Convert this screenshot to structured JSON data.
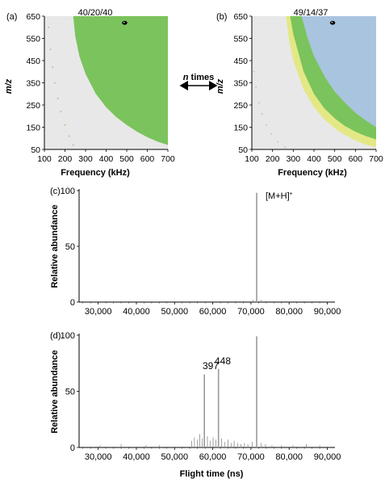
{
  "panels": {
    "a": {
      "label": "(a)",
      "title": "40/20/40",
      "xlabel": "Frequency (kHz)",
      "ylabel": "m/z",
      "x_ticks": [
        "100",
        "200",
        "300",
        "400",
        "500",
        "600",
        "700"
      ],
      "y_ticks": [
        "50",
        "150",
        "250",
        "350",
        "450",
        "550",
        "650"
      ],
      "region_colors": {
        "background": "#e8e8e8",
        "main": "#7bc35c",
        "marker": "#000000"
      }
    },
    "b": {
      "label": "(b)",
      "title": "49/14/37",
      "xlabel": "Frequency (kHz)",
      "ylabel": "m/z",
      "x_ticks": [
        "100",
        "200",
        "300",
        "400",
        "500",
        "600",
        "700"
      ],
      "y_ticks": [
        "50",
        "150",
        "250",
        "350",
        "450",
        "550",
        "650"
      ],
      "region_colors": {
        "background": "#e8e8e8",
        "yellow": "#e3e885",
        "green": "#7bc35c",
        "blue": "#a9c4df",
        "marker": "#000000"
      }
    },
    "arrow_label_n": "n",
    "arrow_label_rest": " times",
    "c": {
      "label": "(c)",
      "ylabel": "Relative abundance",
      "y_ticks": [
        "0",
        "50",
        "100"
      ],
      "x_ticks": [
        "30,000",
        "40,000",
        "50,000",
        "60,000",
        "70,000",
        "80,000",
        "90,000"
      ],
      "peak_label": "[M+H]",
      "peak_label_sup": "+"
    },
    "d": {
      "label": "(d)",
      "ylabel": "Relative abundance",
      "xlabel": "Flight time (ns)",
      "y_ticks": [
        "0",
        "50",
        "100"
      ],
      "x_ticks": [
        "30,000",
        "40,000",
        "50,000",
        "60,000",
        "70,000",
        "80,000",
        "90,000"
      ],
      "peak_label_1": "397",
      "peak_label_2": "448"
    }
  },
  "chart_data": [
    {
      "type": "area",
      "panel": "a",
      "title": "40/20/40",
      "xlabel": "Frequency (kHz)",
      "ylabel": "m/z",
      "xlim": [
        100,
        700
      ],
      "ylim": [
        50,
        650
      ],
      "boundary_green_left": {
        "x": [
          240,
          250,
          270,
          300,
          350,
          400,
          450,
          500,
          550,
          600,
          650,
          700
        ],
        "y": [
          650,
          560,
          470,
          390,
          300,
          240,
          195,
          160,
          130,
          105,
          85,
          70
        ]
      },
      "marker": {
        "x": 490,
        "y": 620
      }
    },
    {
      "type": "area",
      "panel": "b",
      "title": "49/14/37",
      "xlabel": "Frequency (kHz)",
      "ylabel": "m/z",
      "xlim": [
        100,
        700
      ],
      "ylim": [
        50,
        650
      ],
      "boundary_yellow_left": {
        "x": [
          265,
          280,
          300,
          350,
          400,
          450,
          500,
          550,
          600,
          650,
          700
        ],
        "y": [
          650,
          540,
          450,
          320,
          240,
          185,
          145,
          115,
          90,
          72,
          60
        ]
      },
      "boundary_green_left": {
        "x": [
          285,
          300,
          350,
          400,
          450,
          500,
          550,
          600,
          650,
          700
        ],
        "y": [
          650,
          570,
          400,
          300,
          235,
          190,
          155,
          130,
          110,
          95
        ]
      },
      "boundary_blue_left": {
        "x": [
          340,
          370,
          400,
          450,
          500,
          550,
          600,
          650,
          700
        ],
        "y": [
          650,
          550,
          470,
          380,
          310,
          260,
          215,
          180,
          150
        ]
      },
      "marker": {
        "x": 490,
        "y": 620
      }
    },
    {
      "type": "line",
      "panel": "c",
      "ylabel": "Relative abundance",
      "xlim": [
        25000,
        92000
      ],
      "ylim": [
        0,
        100
      ],
      "peaks": [
        {
          "x": 71500,
          "y": 98
        }
      ],
      "noise": [
        {
          "x": 56000,
          "y": 1
        },
        {
          "x": 63000,
          "y": 1
        },
        {
          "x": 70500,
          "y": 2
        },
        {
          "x": 72600,
          "y": 2
        },
        {
          "x": 79000,
          "y": 1
        },
        {
          "x": 86000,
          "y": 1
        }
      ]
    },
    {
      "type": "line",
      "panel": "d",
      "ylabel": "Relative abundance",
      "xlabel": "Flight time (ns)",
      "xlim": [
        25000,
        92000
      ],
      "ylim": [
        0,
        100
      ],
      "peaks": [
        {
          "x": 57800,
          "y": 65
        },
        {
          "x": 61500,
          "y": 70
        },
        {
          "x": 71500,
          "y": 99
        }
      ],
      "noise": [
        {
          "x": 30500,
          "y": 2
        },
        {
          "x": 36000,
          "y": 3
        },
        {
          "x": 42500,
          "y": 2
        },
        {
          "x": 46000,
          "y": 2
        },
        {
          "x": 54500,
          "y": 6
        },
        {
          "x": 55200,
          "y": 9
        },
        {
          "x": 56000,
          "y": 7
        },
        {
          "x": 56600,
          "y": 12
        },
        {
          "x": 57200,
          "y": 8
        },
        {
          "x": 58600,
          "y": 10
        },
        {
          "x": 59300,
          "y": 6
        },
        {
          "x": 60100,
          "y": 9
        },
        {
          "x": 60800,
          "y": 7
        },
        {
          "x": 62300,
          "y": 8
        },
        {
          "x": 63100,
          "y": 5
        },
        {
          "x": 64000,
          "y": 7
        },
        {
          "x": 64800,
          "y": 4
        },
        {
          "x": 65600,
          "y": 6
        },
        {
          "x": 66500,
          "y": 4
        },
        {
          "x": 67400,
          "y": 3
        },
        {
          "x": 68300,
          "y": 4
        },
        {
          "x": 69200,
          "y": 3
        },
        {
          "x": 70300,
          "y": 5
        },
        {
          "x": 72700,
          "y": 4
        },
        {
          "x": 73800,
          "y": 3
        },
        {
          "x": 75500,
          "y": 2
        },
        {
          "x": 78000,
          "y": 2
        },
        {
          "x": 81000,
          "y": 2
        },
        {
          "x": 84500,
          "y": 3
        },
        {
          "x": 88000,
          "y": 2
        }
      ]
    }
  ]
}
